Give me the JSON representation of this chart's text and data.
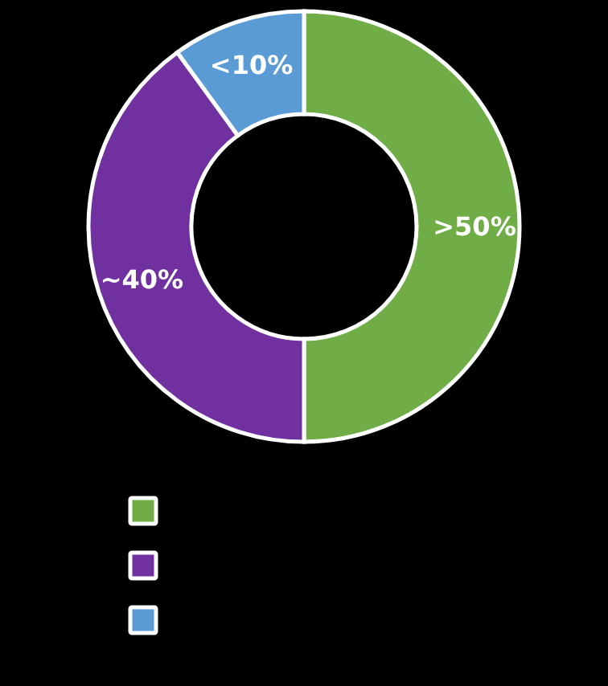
{
  "chart_data": {
    "type": "donut",
    "categories": [
      null,
      null,
      null
    ],
    "values": [
      50,
      40,
      10
    ],
    "value_labels": [
      ">50%",
      "~40%",
      "<10%"
    ],
    "colors": [
      "#70ad47",
      "#7030a0",
      "#5b9bd5"
    ]
  }
}
